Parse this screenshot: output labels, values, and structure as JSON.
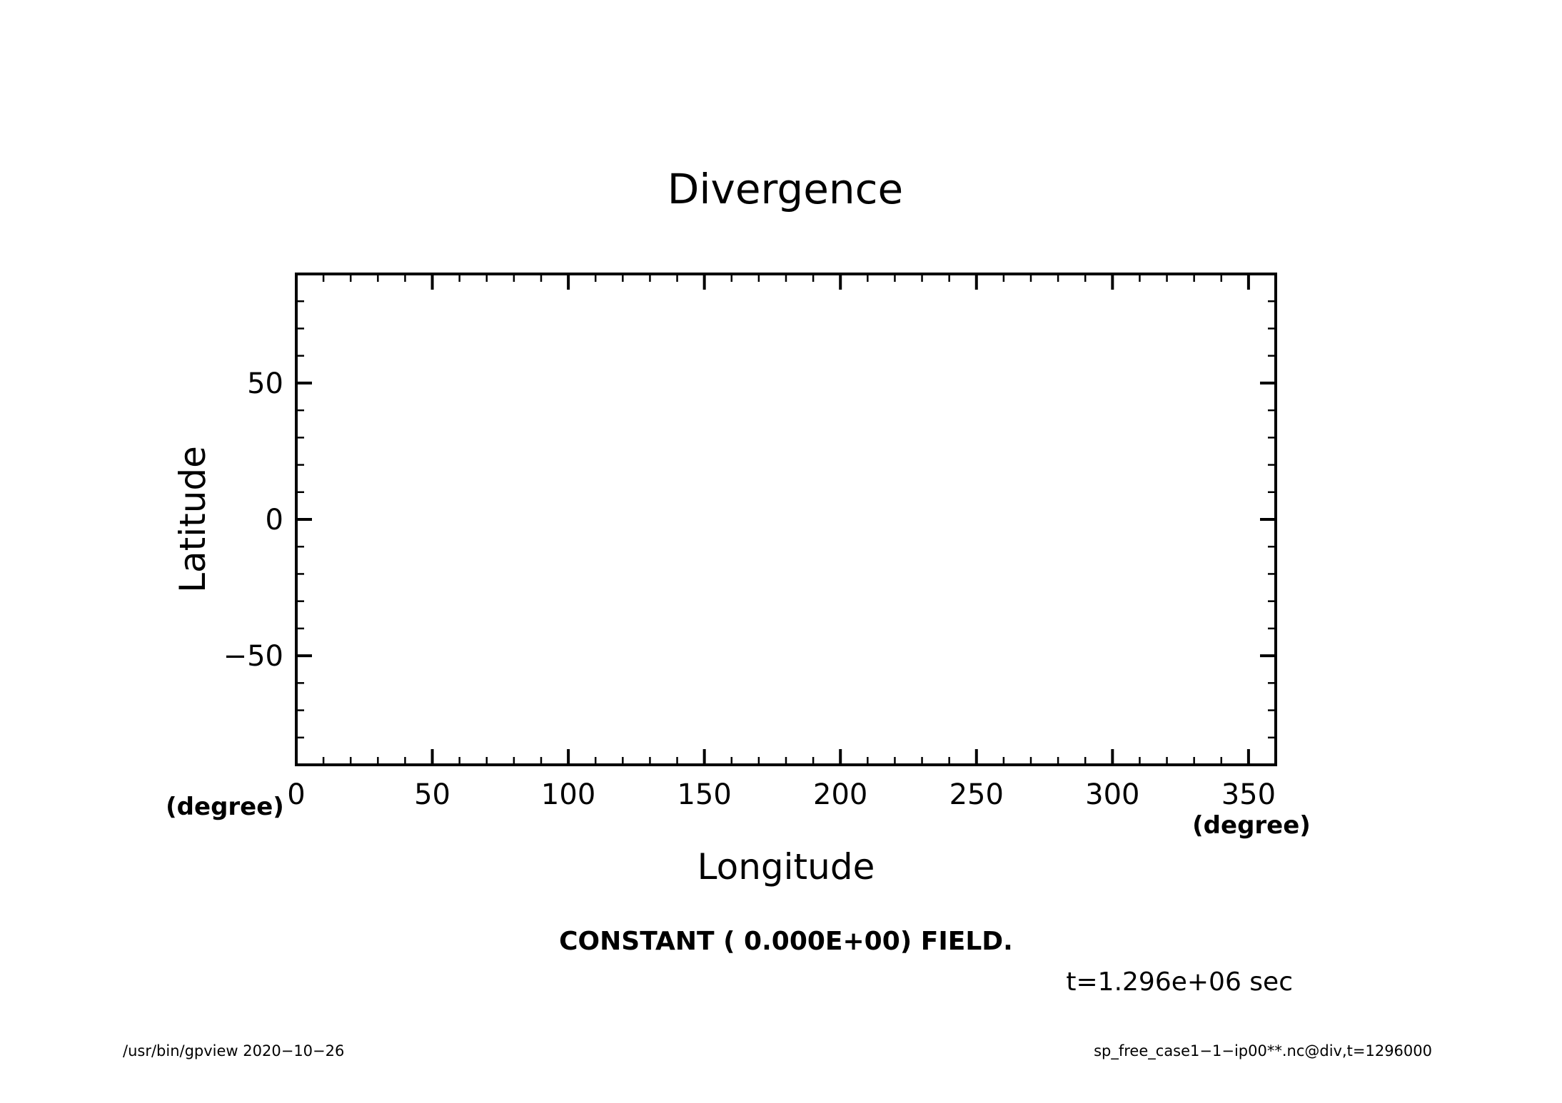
{
  "chart_data": {
    "type": "contour",
    "title": "Divergence",
    "xlabel": "Longitude",
    "ylabel": "Latitude",
    "x_units": "(degree)",
    "y_units": "(degree)",
    "xlim": [
      0,
      360
    ],
    "ylim": [
      -90,
      90
    ],
    "x_ticks": [
      0,
      50,
      100,
      150,
      200,
      250,
      300,
      350
    ],
    "y_ticks": [
      -50,
      0,
      50
    ],
    "x_tick_labels": [
      "0",
      "50",
      "100",
      "150",
      "200",
      "250",
      "300",
      "350"
    ],
    "y_tick_labels": [
      "−50",
      "0",
      "50"
    ],
    "x_minor_step": 10,
    "y_minor_step": 10,
    "grid": false,
    "series": [],
    "field_message": "CONSTANT ( 0.000E+00) FIELD.",
    "time_label": "t=1.296e+06 sec"
  },
  "footer": {
    "left": "/usr/bin/gpview   2020−10−26",
    "right": "sp_free_case1−1−ip00**.nc@div,t=1296000"
  }
}
